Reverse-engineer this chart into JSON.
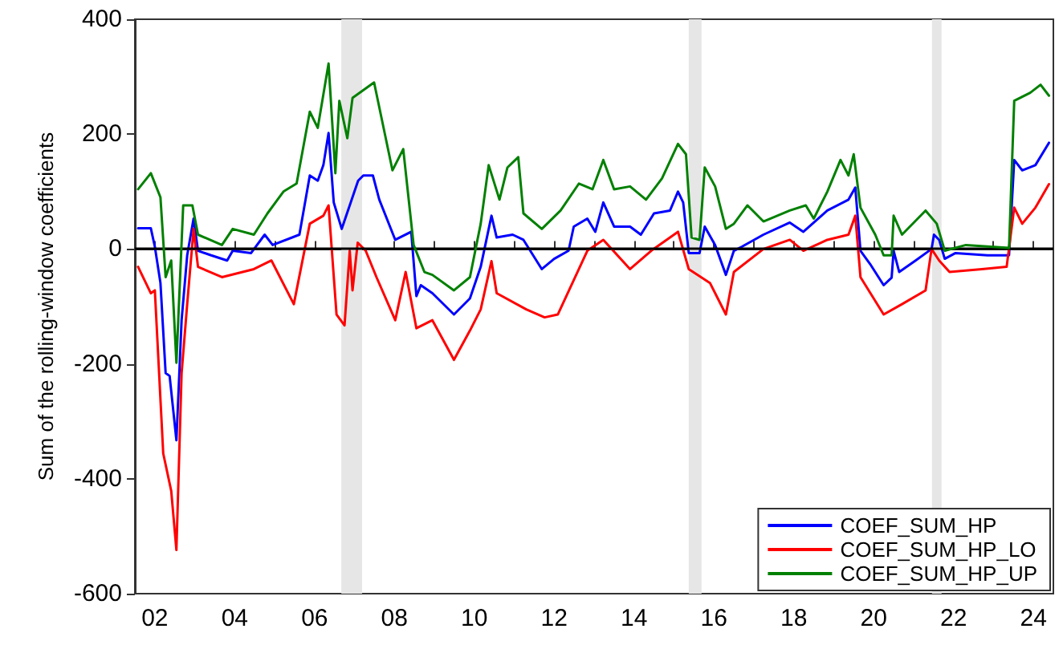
{
  "chart_data": {
    "type": "line",
    "ylabel": "Sum of the rolling-window coefficients",
    "xlim": [
      2001.5,
      2024.5
    ],
    "xticks": [
      {
        "value": 2002,
        "label": "02"
      },
      {
        "value": 2003,
        "label": null
      },
      {
        "value": 2004,
        "label": "04"
      },
      {
        "value": 2005,
        "label": null
      },
      {
        "value": 2006,
        "label": "06"
      },
      {
        "value": 2007,
        "label": null
      },
      {
        "value": 2008,
        "label": "08"
      },
      {
        "value": 2009,
        "label": null
      },
      {
        "value": 2010,
        "label": "10"
      },
      {
        "value": 2011,
        "label": null
      },
      {
        "value": 2012,
        "label": "12"
      },
      {
        "value": 2013,
        "label": null
      },
      {
        "value": 2014,
        "label": "14"
      },
      {
        "value": 2015,
        "label": null
      },
      {
        "value": 2016,
        "label": "16"
      },
      {
        "value": 2017,
        "label": null
      },
      {
        "value": 2018,
        "label": "18"
      },
      {
        "value": 2019,
        "label": null
      },
      {
        "value": 2020,
        "label": "20"
      },
      {
        "value": 2021,
        "label": null
      },
      {
        "value": 2022,
        "label": "22"
      },
      {
        "value": 2023,
        "label": null
      },
      {
        "value": 2024,
        "label": "24"
      }
    ],
    "ylim": [
      -600,
      400
    ],
    "yticks": [
      -600,
      -400,
      -200,
      0,
      200,
      400
    ],
    "grid": false,
    "legend": "bottom right",
    "line_style": "solid",
    "marker": "none",
    "ref_lines": [
      {
        "axis": "y",
        "value": 0,
        "color": "#000000"
      }
    ],
    "bands": [
      {
        "axis": "x",
        "from": 2006.67,
        "to": 2007.19,
        "color": "#e6e6e6"
      },
      {
        "axis": "x",
        "from": 2015.37,
        "to": 2015.69,
        "color": "#e6e6e6"
      },
      {
        "axis": "x",
        "from": 2021.46,
        "to": 2021.7,
        "color": "#e6e6e6"
      }
    ],
    "series": [
      {
        "name": "COEF_SUM_HP",
        "color": "#0000ff",
        "x": [
          2001.58,
          2001.9,
          2002.0,
          2002.14,
          2002.27,
          2002.37,
          2002.54,
          2002.67,
          2002.81,
          2002.97,
          2003.08,
          2003.41,
          2003.81,
          2003.95,
          2004.41,
          2004.75,
          2004.95,
          2005.62,
          2005.88,
          2006.08,
          2006.22,
          2006.35,
          2006.48,
          2006.68,
          2007.09,
          2007.22,
          2007.46,
          2007.62,
          2008.02,
          2008.42,
          2008.55,
          2008.66,
          2008.95,
          2009.49,
          2009.89,
          2010.16,
          2010.43,
          2010.56,
          2010.96,
          2011.23,
          2011.69,
          2012.0,
          2012.36,
          2012.49,
          2012.83,
          2013.03,
          2013.23,
          2013.5,
          2013.9,
          2014.17,
          2014.5,
          2014.9,
          2015.1,
          2015.23,
          2015.37,
          2015.64,
          2015.77,
          2016.03,
          2016.3,
          2016.5,
          2016.7,
          2017.24,
          2017.9,
          2018.24,
          2018.84,
          2019.37,
          2019.54,
          2019.67,
          2019.91,
          2020.25,
          2020.45,
          2020.5,
          2020.64,
          2021.05,
          2021.45,
          2021.51,
          2021.64,
          2021.78,
          2022.05,
          2022.85,
          2023.39,
          2023.52,
          2023.72,
          2024.05,
          2024.39
        ],
        "values": [
          36,
          36,
          4,
          -59,
          -216,
          -221,
          -333,
          -124,
          -11,
          53,
          -3,
          -11,
          -20,
          -3,
          -7,
          25,
          7,
          25,
          128,
          119,
          146,
          202,
          81,
          35,
          119,
          128,
          128,
          86,
          16,
          30,
          -82,
          -63,
          -77,
          -114,
          -86,
          -31,
          58,
          20,
          25,
          16,
          -35,
          -17,
          -3,
          39,
          53,
          30,
          81,
          39,
          39,
          25,
          62,
          67,
          100,
          81,
          -7,
          -7,
          39,
          7,
          -45,
          -3,
          4,
          25,
          46,
          30,
          67,
          86,
          107,
          -3,
          -26,
          -63,
          -50,
          -3,
          -40,
          -20,
          0,
          25,
          16,
          -17,
          -7,
          -11,
          -11,
          155,
          137,
          146,
          185
        ]
      },
      {
        "name": "COEF_SUM_HP_LO",
        "color": "#ff0000",
        "x": [
          2001.58,
          2001.9,
          2002.0,
          2002.21,
          2002.41,
          2002.54,
          2002.67,
          2002.81,
          2002.97,
          2003.08,
          2003.68,
          2004.48,
          2004.92,
          2005.48,
          2005.88,
          2006.22,
          2006.35,
          2006.55,
          2006.75,
          2006.88,
          2006.95,
          2007.08,
          2007.28,
          2007.55,
          2008.02,
          2008.28,
          2008.55,
          2008.95,
          2009.49,
          2009.89,
          2010.16,
          2010.43,
          2010.56,
          2011.3,
          2011.76,
          2012.09,
          2012.83,
          2013.23,
          2013.9,
          2014.43,
          2015.1,
          2015.37,
          2015.9,
          2016.3,
          2016.5,
          2017.24,
          2017.9,
          2018.24,
          2018.84,
          2019.37,
          2019.54,
          2019.67,
          2020.25,
          2020.71,
          2021.3,
          2021.45,
          2021.64,
          2021.9,
          2022.71,
          2023.33,
          2023.52,
          2023.72,
          2024.05,
          2024.39
        ],
        "values": [
          -31,
          -77,
          -72,
          -356,
          -421,
          -524,
          -216,
          -96,
          35,
          -31,
          -49,
          -35,
          -20,
          -96,
          44,
          58,
          76,
          -114,
          -133,
          -3,
          -72,
          11,
          -3,
          -49,
          -124,
          -40,
          -138,
          -124,
          -193,
          -142,
          -105,
          -21,
          -77,
          -105,
          -119,
          -114,
          -3,
          16,
          -35,
          -3,
          30,
          -35,
          -59,
          -114,
          -40,
          0,
          16,
          -3,
          16,
          25,
          58,
          -49,
          -114,
          -96,
          -72,
          0,
          -20,
          -40,
          -35,
          -31,
          72,
          44,
          72,
          113
        ]
      },
      {
        "name": "COEF_SUM_HP_UP",
        "color": "#008000",
        "x": [
          2001.58,
          2001.9,
          2002.14,
          2002.27,
          2002.41,
          2002.54,
          2002.71,
          2002.94,
          2003.08,
          2003.68,
          2003.95,
          2004.48,
          2004.82,
          2005.22,
          2005.55,
          2005.88,
          2006.08,
          2006.35,
          2006.52,
          2006.62,
          2006.82,
          2006.95,
          2007.49,
          2007.95,
          2008.22,
          2008.48,
          2008.75,
          2008.95,
          2009.49,
          2009.89,
          2010.16,
          2010.36,
          2010.63,
          2010.83,
          2011.1,
          2011.23,
          2011.69,
          2012.16,
          2012.62,
          2012.96,
          2013.23,
          2013.5,
          2013.9,
          2014.3,
          2014.7,
          2015.1,
          2015.3,
          2015.44,
          2015.64,
          2015.77,
          2016.03,
          2016.3,
          2016.5,
          2016.84,
          2017.24,
          2017.9,
          2018.3,
          2018.5,
          2018.84,
          2019.17,
          2019.37,
          2019.5,
          2019.67,
          2020.04,
          2020.25,
          2020.45,
          2020.5,
          2020.71,
          2021.3,
          2021.58,
          2021.78,
          2022.31,
          2023.39,
          2023.52,
          2023.92,
          2024.18,
          2024.39
        ],
        "values": [
          104,
          132,
          90,
          -49,
          -20,
          -198,
          76,
          76,
          25,
          7,
          35,
          25,
          62,
          100,
          114,
          239,
          211,
          323,
          132,
          258,
          193,
          263,
          290,
          137,
          174,
          7,
          -40,
          -45,
          -72,
          -49,
          44,
          146,
          86,
          142,
          160,
          62,
          35,
          67,
          114,
          104,
          155,
          104,
          109,
          86,
          123,
          183,
          165,
          20,
          16,
          142,
          109,
          35,
          44,
          76,
          48,
          67,
          76,
          53,
          100,
          155,
          128,
          165,
          72,
          25,
          -11,
          -11,
          58,
          25,
          67,
          44,
          -3,
          7,
          2,
          258,
          272,
          286,
          267
        ]
      }
    ]
  }
}
